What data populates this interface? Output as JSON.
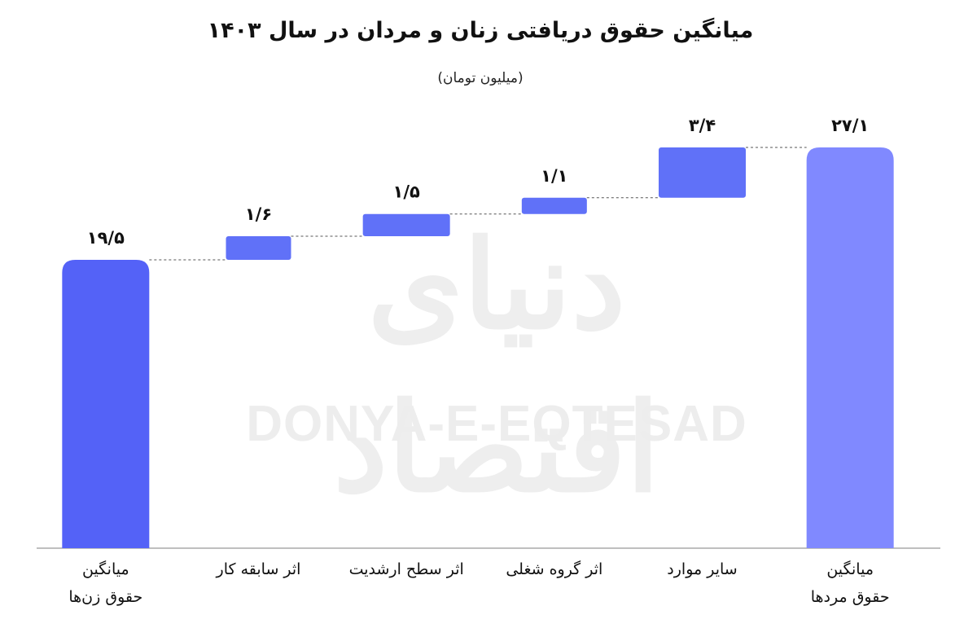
{
  "title": "میانگین حقوق دریافتی زنان و مردان  در سال ۱۴۰۳",
  "subtitle": "(میلیون تومان)",
  "watermark_logo": "دنیای اقتصاد",
  "watermark_text": "DONYA-E-EQTESAD",
  "colors": {
    "total_left": "#5462f7",
    "step": "#6071f8",
    "total_right": "#8089ff",
    "axis": "#aaaaaa",
    "connector": "#555555"
  },
  "chart_data": {
    "type": "bar",
    "subtype": "waterfall",
    "title": "میانگین حقوق دریافتی زنان و مردان  در سال ۱۴۰۳",
    "ylabel": "(میلیون تومان)",
    "ylim": [
      0,
      30
    ],
    "grid": false,
    "categories": [
      [
        "میانگین",
        "حقوق زن‌ها"
      ],
      [
        "اثر سابقه کار"
      ],
      [
        "اثر سطح ارشدیت"
      ],
      [
        "اثر گروه شغلی"
      ],
      [
        "سایر موارد"
      ],
      [
        "میانگین",
        "حقوق مردها"
      ]
    ],
    "values": [
      19.5,
      1.6,
      1.5,
      1.1,
      3.4,
      27.1
    ],
    "kinds": [
      "total",
      "delta",
      "delta",
      "delta",
      "delta",
      "total"
    ],
    "value_labels": [
      "۱۹/۵",
      "۱/۶",
      "۱/۵",
      "۱/۱",
      "۳/۴",
      "۲۷/۱"
    ]
  }
}
